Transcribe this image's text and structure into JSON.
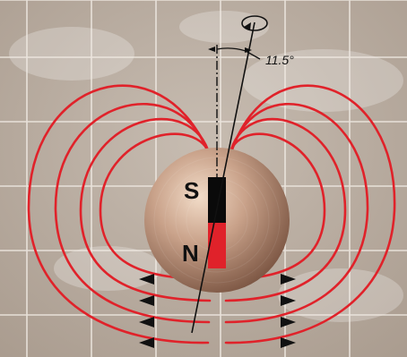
{
  "diagram": {
    "pole_north": "N",
    "pole_south": "S",
    "tilt_angle_label": "11.5°",
    "tilt_angle_degrees": 11.5
  },
  "colors": {
    "background": "#b8ab9f",
    "grid": "#efe9e2",
    "field_line": "#e0222a",
    "earth_light": "#eed7c2",
    "earth_dark": "#8a6450",
    "magnet_south": "#0a0a0a",
    "magnet_north": "#e0222a",
    "axis": "#111111"
  },
  "icons": {
    "rotation": "rotation-arrow-icon"
  }
}
